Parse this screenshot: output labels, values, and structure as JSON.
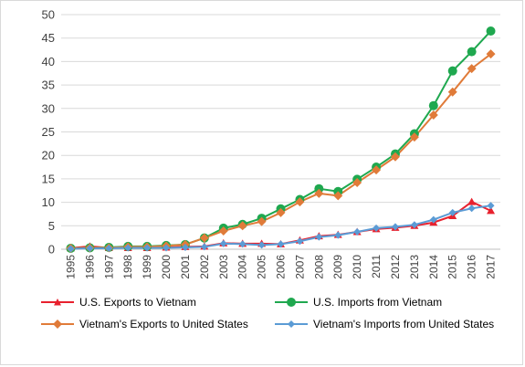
{
  "chart_data": {
    "type": "line",
    "title": "",
    "xlabel": "",
    "ylabel": "",
    "categories": [
      "1995",
      "1996",
      "1997",
      "1998",
      "1999",
      "2000",
      "2001",
      "2002",
      "2003",
      "2004",
      "2005",
      "2006",
      "2007",
      "2008",
      "2009",
      "2010",
      "2011",
      "2012",
      "2013",
      "2014",
      "2015",
      "2016",
      "2017"
    ],
    "ylim": [
      0,
      50
    ],
    "yticks": [
      "0",
      "5",
      "10",
      "15",
      "20",
      "25",
      "30",
      "35",
      "40",
      "45",
      "50"
    ],
    "grid": true,
    "legend_position": "bottom",
    "series": [
      {
        "name": "U.S. Exports to Vietnam",
        "color": "#e8212e",
        "marker": "triangle",
        "values": [
          0.25,
          0.6,
          0.3,
          0.3,
          0.3,
          0.4,
          0.5,
          0.6,
          1.3,
          1.2,
          1.2,
          1.1,
          1.9,
          2.8,
          3.1,
          3.7,
          4.3,
          4.6,
          5.0,
          5.7,
          7.1,
          10.1,
          8.2
        ]
      },
      {
        "name": "U.S. Imports from Vietnam",
        "color": "#1fa84f",
        "marker": "circle",
        "values": [
          0.2,
          0.3,
          0.4,
          0.6,
          0.6,
          0.8,
          1.0,
          2.4,
          4.5,
          5.3,
          6.6,
          8.6,
          10.6,
          12.9,
          12.3,
          14.9,
          17.5,
          20.3,
          24.6,
          30.6,
          38.0,
          42.1,
          46.5
        ]
      },
      {
        "name": "Vietnam's Exports to United States",
        "color": "#e07b39",
        "marker": "diamond",
        "values": [
          0.2,
          0.3,
          0.3,
          0.5,
          0.5,
          0.7,
          1.0,
          2.4,
          3.9,
          5.0,
          5.9,
          7.8,
          10.1,
          11.9,
          11.4,
          14.2,
          16.9,
          19.7,
          23.9,
          28.6,
          33.5,
          38.5,
          41.6
        ]
      },
      {
        "name": "Vietnam's Imports from United States",
        "color": "#5b9bd5",
        "marker": "diamond",
        "values": [
          0.1,
          0.2,
          0.2,
          0.3,
          0.3,
          0.3,
          0.4,
          0.5,
          1.2,
          1.1,
          0.9,
          1.1,
          1.7,
          2.6,
          3.0,
          3.7,
          4.5,
          4.8,
          5.2,
          6.3,
          7.8,
          8.7,
          9.3
        ]
      }
    ]
  }
}
